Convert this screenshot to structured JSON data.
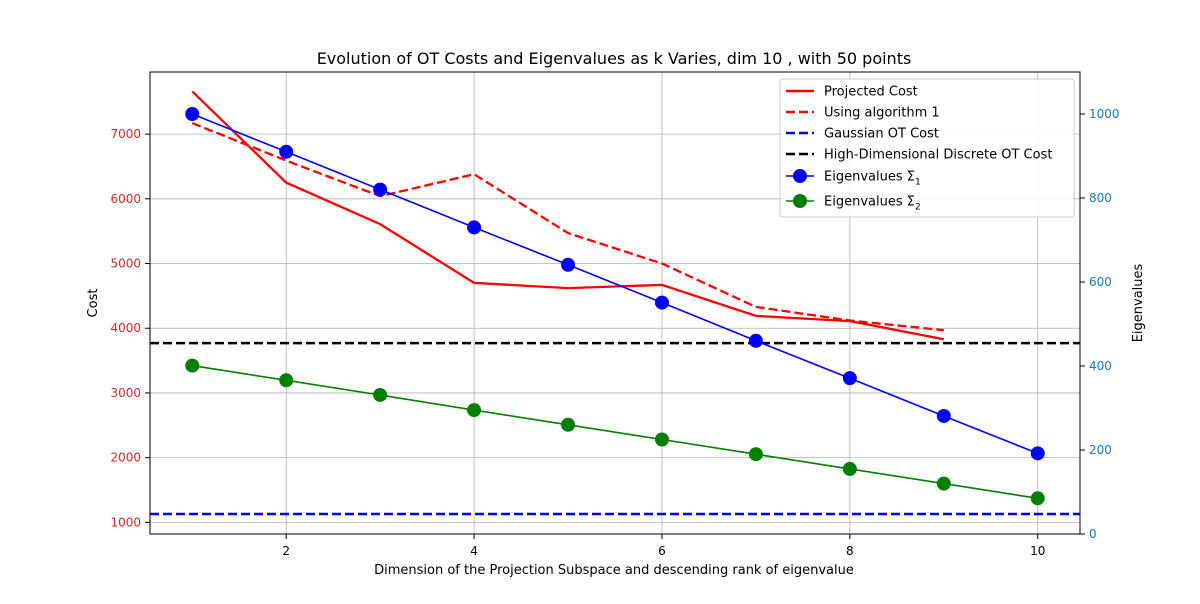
{
  "chart_data": {
    "type": "line",
    "title": "Evolution of OT Costs and Eigenvalues as k Varies, dim 10 , with 50 points",
    "xlabel": "Dimension of the Projection Subspace and descending rank of eigenvalue",
    "ylabel_left": "Cost",
    "ylabel_right": "Eigenvalues",
    "xlim": [
      0.55,
      10.45
    ],
    "ylim_left": [
      820,
      7960
    ],
    "ylim_right": [
      0,
      1100
    ],
    "x_ticks": [
      2,
      4,
      6,
      8,
      10
    ],
    "y_ticks_left": [
      1000,
      2000,
      3000,
      4000,
      5000,
      6000,
      7000
    ],
    "y_ticks_right": [
      0,
      200,
      400,
      600,
      800,
      1000
    ],
    "grid": true,
    "legend_position": "top-right",
    "colors": {
      "left_axis": "#d62728",
      "right_axis": "#1f77b4"
    },
    "series": [
      {
        "name": "Projected Cost",
        "axis": "left",
        "style": "solid",
        "color": "#ff0000",
        "marker": "none",
        "x": [
          1,
          2,
          3,
          4,
          5,
          6,
          7,
          8,
          9
        ],
        "values": [
          7660,
          6250,
          5610,
          4700,
          4620,
          4670,
          4190,
          4110,
          3830
        ]
      },
      {
        "name": "Using algorithm 1",
        "axis": "left",
        "style": "dashed",
        "color": "#ff0000",
        "marker": "none",
        "x": [
          1,
          2,
          3,
          4,
          5,
          6,
          7,
          8,
          9
        ],
        "values": [
          7170,
          6590,
          6040,
          6380,
          5470,
          5000,
          4330,
          4120,
          3970
        ]
      },
      {
        "name": "Gaussian OT Cost",
        "axis": "left",
        "style": "dashed",
        "color": "#0000ff",
        "marker": "none",
        "hline": 1130
      },
      {
        "name": "High-Dimensional Discrete OT Cost",
        "axis": "left",
        "style": "dashed",
        "color": "#000000",
        "marker": "none",
        "hline": 3770
      },
      {
        "name": "Eigenvalues Σ",
        "subscript": "1",
        "axis": "right",
        "style": "solid",
        "color": "#0000ff",
        "marker": "circle",
        "x": [
          1,
          2,
          3,
          4,
          5,
          6,
          7,
          8,
          9,
          10
        ],
        "values": [
          1000,
          910,
          820,
          730,
          641,
          551,
          460,
          371,
          281,
          192
        ]
      },
      {
        "name": "Eigenvalues Σ",
        "subscript": "2",
        "axis": "right",
        "style": "solid",
        "color": "#008000",
        "marker": "circle",
        "x": [
          1,
          2,
          3,
          4,
          5,
          6,
          7,
          8,
          9,
          10
        ],
        "values": [
          401,
          366,
          331,
          295,
          260,
          225,
          190,
          155,
          120,
          85
        ]
      }
    ]
  }
}
